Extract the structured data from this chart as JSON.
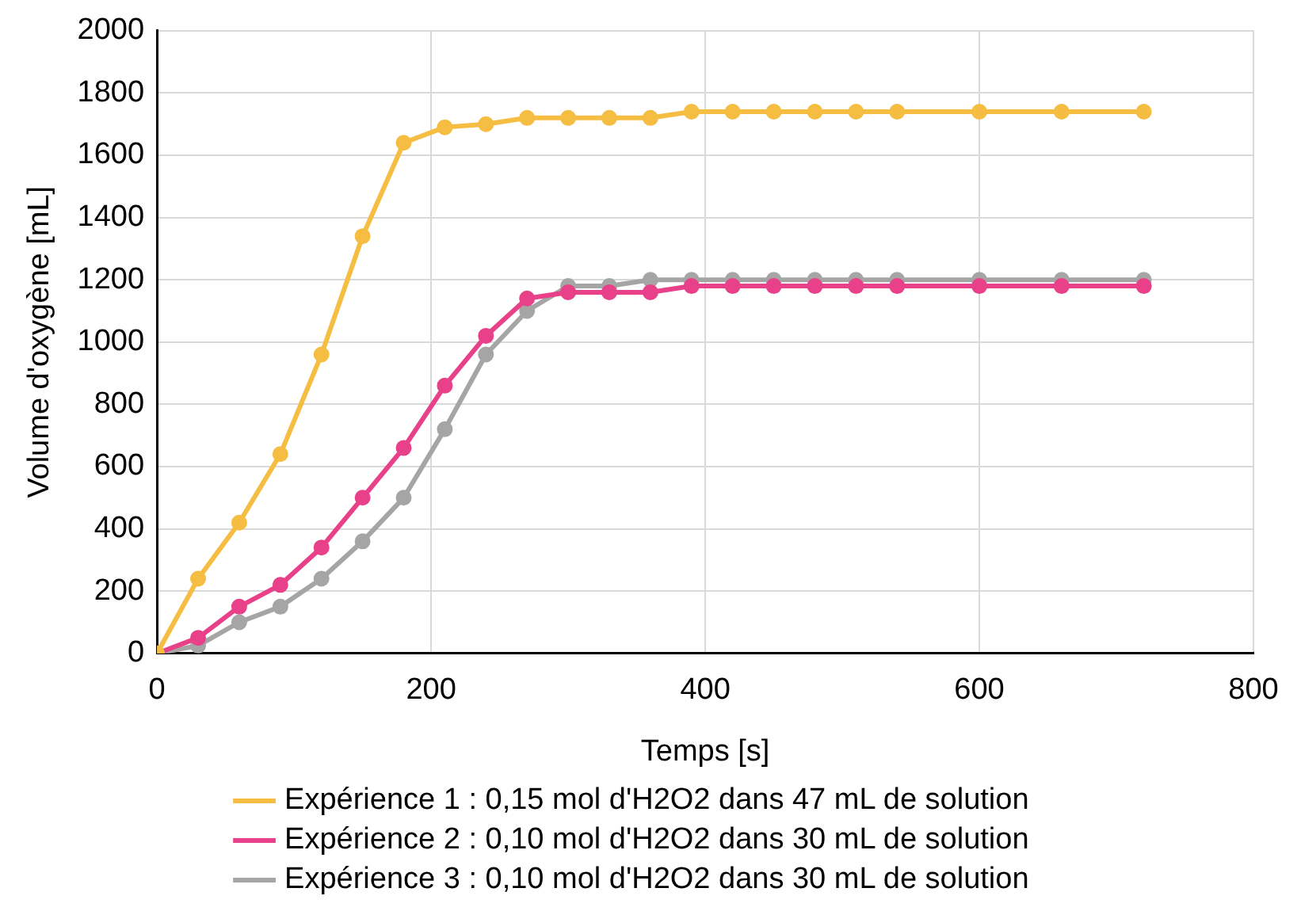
{
  "chart_data": {
    "type": "line",
    "xlabel": "Temps [s]",
    "ylabel": "Volume d'oxygène [mL]",
    "x": [
      0,
      30,
      60,
      90,
      120,
      150,
      180,
      210,
      240,
      270,
      300,
      330,
      360,
      390,
      420,
      450,
      480,
      510,
      540,
      600,
      660,
      720
    ],
    "xlim": [
      0,
      800
    ],
    "xticks": [
      0,
      200,
      400,
      600,
      800
    ],
    "ylim": [
      0,
      2000
    ],
    "yticks": [
      0,
      200,
      400,
      600,
      800,
      1000,
      1200,
      1400,
      1600,
      1800,
      2000
    ],
    "grid": true,
    "legend": "bottom",
    "marker": "circle",
    "line_style": "solid",
    "series": [
      {
        "name": "Expérience 1 : 0,15 mol d'H2O2 dans 47 mL de solution",
        "color": "#f5bd41",
        "values": [
          0,
          240,
          420,
          640,
          960,
          1340,
          1640,
          1690,
          1700,
          1720,
          1720,
          1720,
          1720,
          1740,
          1740,
          1740,
          1740,
          1740,
          1740,
          1740,
          1740,
          1740
        ]
      },
      {
        "name": "Expérience 2 : 0,10 mol d'H2O2 dans 30 mL de solution",
        "color": "#e8418a",
        "values": [
          0,
          50,
          150,
          220,
          340,
          500,
          660,
          860,
          1020,
          1140,
          1160,
          1160,
          1160,
          1180,
          1180,
          1180,
          1180,
          1180,
          1180,
          1180,
          1180,
          1180
        ]
      },
      {
        "name": "Expérience 3 : 0,10 mol d'H2O2 dans 30 mL de solution",
        "color": "#a5a5a5",
        "values": [
          0,
          25,
          100,
          150,
          240,
          360,
          500,
          720,
          960,
          1100,
          1180,
          1180,
          1200,
          1200,
          1200,
          1200,
          1200,
          1200,
          1200,
          1200,
          1200,
          1200
        ]
      }
    ]
  }
}
